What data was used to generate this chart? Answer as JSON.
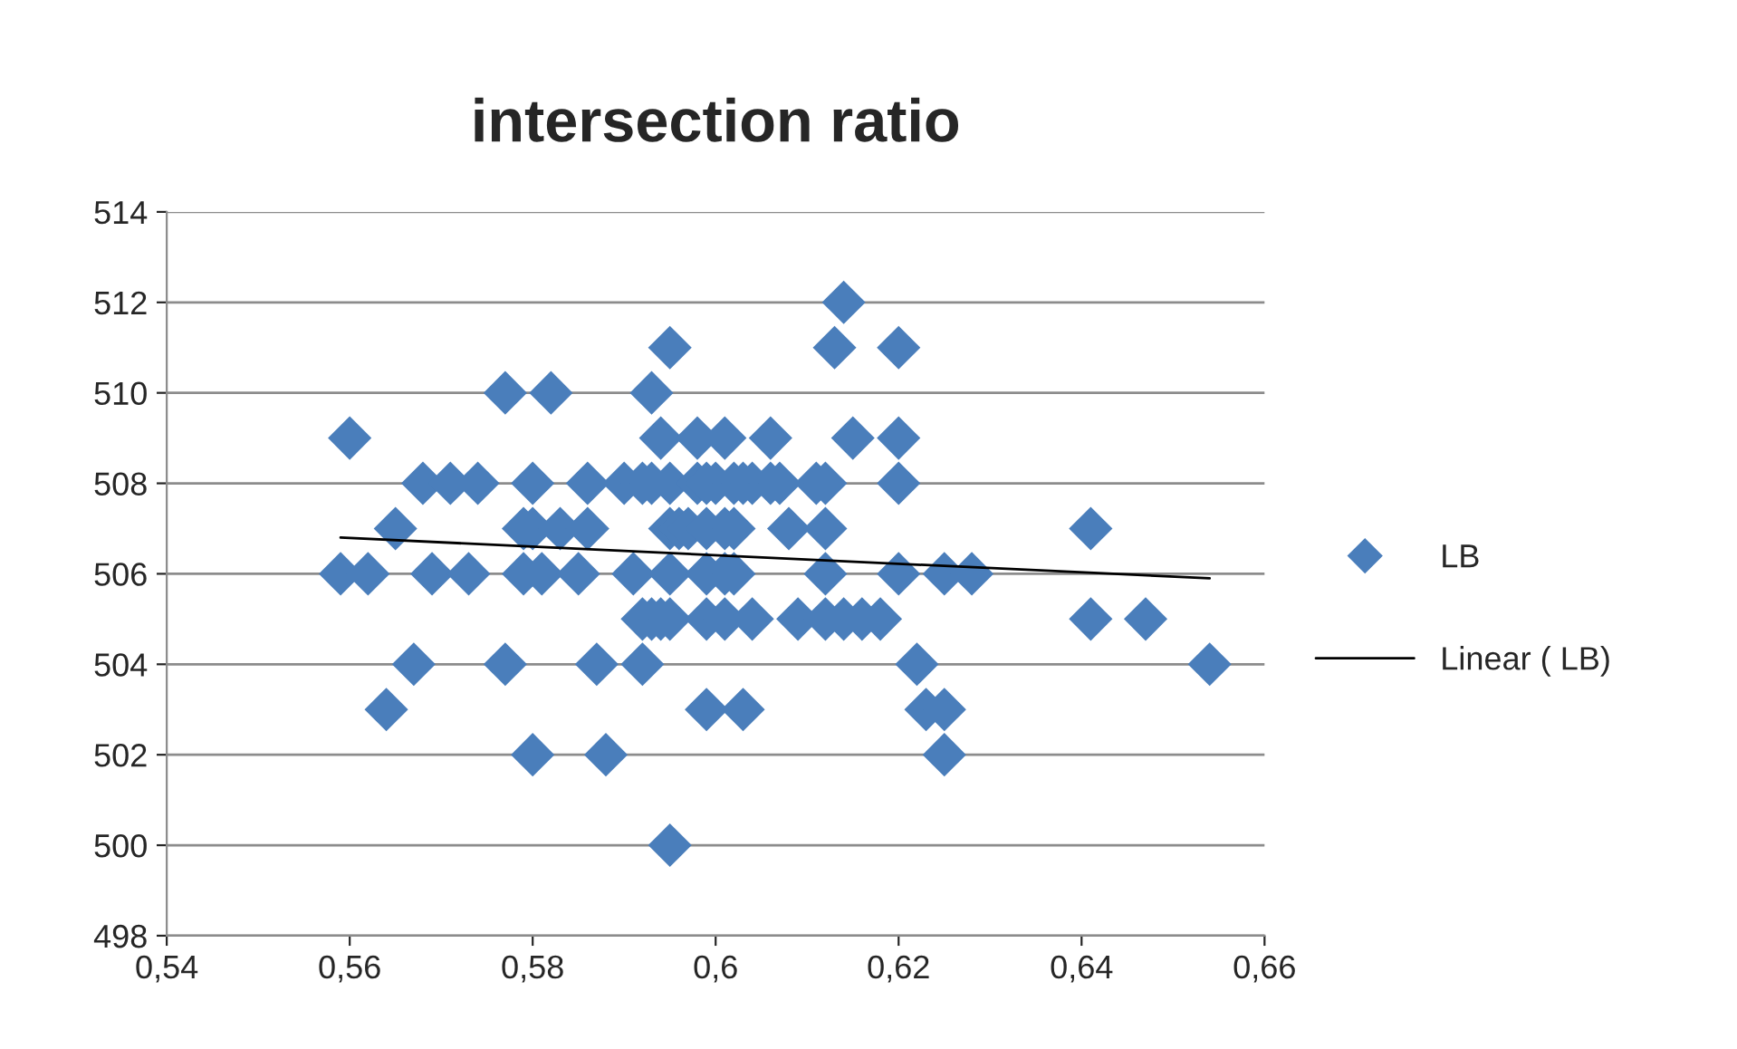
{
  "chart_data": {
    "type": "scatter",
    "title": "intersection ratio",
    "series": [
      {
        "name": "LB",
        "color": "#4a7ebb",
        "marker": "diamond",
        "x": [
          0.614,
          0.595,
          0.613,
          0.62,
          0.577,
          0.582,
          0.593,
          0.56,
          0.594,
          0.598,
          0.601,
          0.606,
          0.615,
          0.62,
          0.568,
          0.571,
          0.574,
          0.58,
          0.586,
          0.59,
          0.592,
          0.593,
          0.595,
          0.598,
          0.599,
          0.6,
          0.602,
          0.603,
          0.604,
          0.606,
          0.607,
          0.611,
          0.612,
          0.62,
          0.565,
          0.579,
          0.58,
          0.583,
          0.586,
          0.595,
          0.596,
          0.597,
          0.599,
          0.601,
          0.602,
          0.608,
          0.612,
          0.641,
          0.559,
          0.562,
          0.569,
          0.573,
          0.579,
          0.581,
          0.585,
          0.591,
          0.595,
          0.599,
          0.601,
          0.602,
          0.612,
          0.62,
          0.625,
          0.628,
          0.592,
          0.593,
          0.594,
          0.595,
          0.599,
          0.601,
          0.604,
          0.609,
          0.612,
          0.614,
          0.616,
          0.618,
          0.641,
          0.647,
          0.567,
          0.577,
          0.587,
          0.592,
          0.622,
          0.654,
          0.564,
          0.599,
          0.603,
          0.623,
          0.625,
          0.58,
          0.588,
          0.625,
          0.595
        ],
        "values": [
          512,
          511,
          511,
          511,
          510,
          510,
          510,
          509,
          509,
          509,
          509,
          509,
          509,
          509,
          508,
          508,
          508,
          508,
          508,
          508,
          508,
          508,
          508,
          508,
          508,
          508,
          508,
          508,
          508,
          508,
          508,
          508,
          508,
          508,
          507,
          507,
          507,
          507,
          507,
          507,
          507,
          507,
          507,
          507,
          507,
          507,
          507,
          507,
          506,
          506,
          506,
          506,
          506,
          506,
          506,
          506,
          506,
          506,
          506,
          506,
          506,
          506,
          506,
          506,
          505,
          505,
          505,
          505,
          505,
          505,
          505,
          505,
          505,
          505,
          505,
          505,
          505,
          505,
          504,
          504,
          504,
          504,
          504,
          504,
          503,
          503,
          503,
          503,
          503,
          502,
          502,
          502,
          500
        ]
      },
      {
        "name": "Linear ( LB)",
        "type": "line",
        "color": "#000000",
        "line_style": "solid",
        "x": [
          0.559,
          0.654
        ],
        "values": [
          506.8,
          505.9
        ]
      }
    ],
    "xlim": [
      0.54,
      0.66
    ],
    "xticks": [
      {
        "value": 0.54,
        "label": "0,54"
      },
      {
        "value": 0.56,
        "label": "0,56"
      },
      {
        "value": 0.58,
        "label": "0,58"
      },
      {
        "value": 0.6,
        "label": "0,6"
      },
      {
        "value": 0.62,
        "label": "0,62"
      },
      {
        "value": 0.64,
        "label": "0,64"
      },
      {
        "value": 0.66,
        "label": "0,66"
      }
    ],
    "ylim": [
      498,
      514
    ],
    "yticks": [
      498,
      500,
      502,
      504,
      506,
      508,
      510,
      512,
      514
    ],
    "grid": "y",
    "legend": "right"
  }
}
